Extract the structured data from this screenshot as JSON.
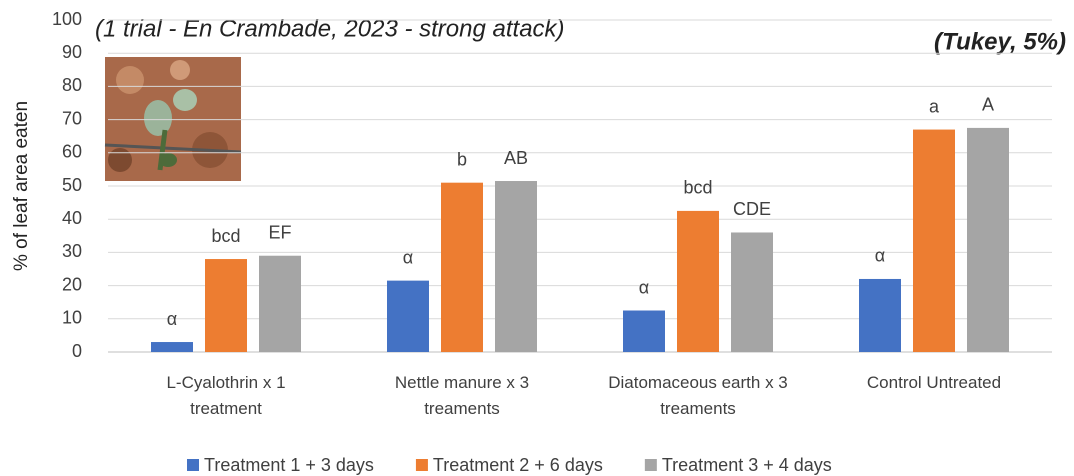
{
  "chart_data": {
    "type": "bar",
    "title": "(1 trial - En Crambade, 2023 - strong attack)",
    "subtitle": "(Tukey, 5%)",
    "y_label": "% of leaf area eaten",
    "categories": [
      "L-Cyalothrin x 1\ntreatment",
      "Nettle manure x 3\ntreaments",
      "Diatomaceous earth x 3\ntreaments",
      "Control Untreated"
    ],
    "series": [
      {
        "name": "Treatment 1 + 3 days",
        "color": "#4472c4",
        "values": [
          3,
          21.5,
          12.5,
          22
        ],
        "labels": [
          "α",
          "α",
          "α",
          "α"
        ]
      },
      {
        "name": "Treatment 2 + 6 days",
        "color": "#ed7d31",
        "values": [
          28,
          51,
          42.5,
          67
        ],
        "labels": [
          "bcd",
          "b",
          "bcd",
          "a"
        ]
      },
      {
        "name": "Treatment 3 + 4 days",
        "color": "#a5a5a5",
        "values": [
          29,
          51.5,
          36,
          67.5
        ],
        "labels": [
          "EF",
          "AB",
          "CDE",
          "A"
        ]
      }
    ],
    "ylim": [
      0,
      100
    ],
    "yticks": [
      0,
      10,
      20,
      30,
      40,
      50,
      60,
      70,
      80,
      90,
      100
    ],
    "grid": true,
    "legend": "bottom"
  }
}
